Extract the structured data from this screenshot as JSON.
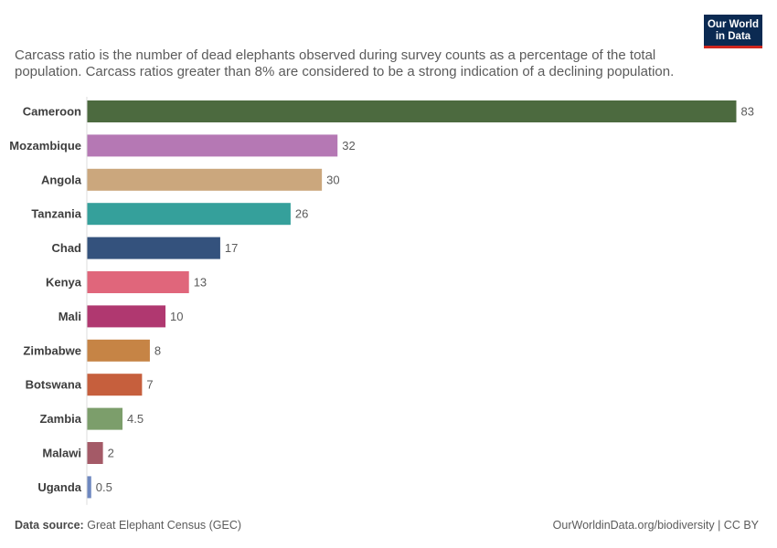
{
  "subtitle": "Carcass ratio is the number of dead elephants observed during survey counts as a percentage of the total population. Carcass ratios greater than 8% are considered to be a strong indication of a declining population.",
  "logo": {
    "line1": "Our World",
    "line2": "in Data",
    "color": "#0b2a52",
    "accent": "#ce261e"
  },
  "footer": {
    "source_label": "Data source:",
    "source_value": "Great Elephant Census (GEC)",
    "link": "OurWorldinData.org/biodiversity | CC BY"
  },
  "chart_data": {
    "type": "bar",
    "orientation": "horizontal",
    "categories": [
      "Cameroon",
      "Mozambique",
      "Angola",
      "Tanzania",
      "Chad",
      "Kenya",
      "Mali",
      "Zimbabwe",
      "Botswana",
      "Zambia",
      "Malawi",
      "Uganda"
    ],
    "values": [
      83,
      32,
      30,
      26,
      17,
      13,
      10,
      8,
      7,
      4.5,
      2,
      0.5
    ],
    "value_labels": [
      "83",
      "32",
      "30",
      "26",
      "17",
      "13",
      "10",
      "8",
      "7",
      "4.5",
      "2",
      "0.5"
    ],
    "colors": [
      "#4c6a3f",
      "#b578b4",
      "#cba77d",
      "#35a09b",
      "#34527d",
      "#e0667b",
      "#b03870",
      "#c68445",
      "#c65f3d",
      "#7c9e6b",
      "#a45a67",
      "#6e88c0"
    ],
    "xlim": [
      0,
      83
    ],
    "grid": false
  }
}
